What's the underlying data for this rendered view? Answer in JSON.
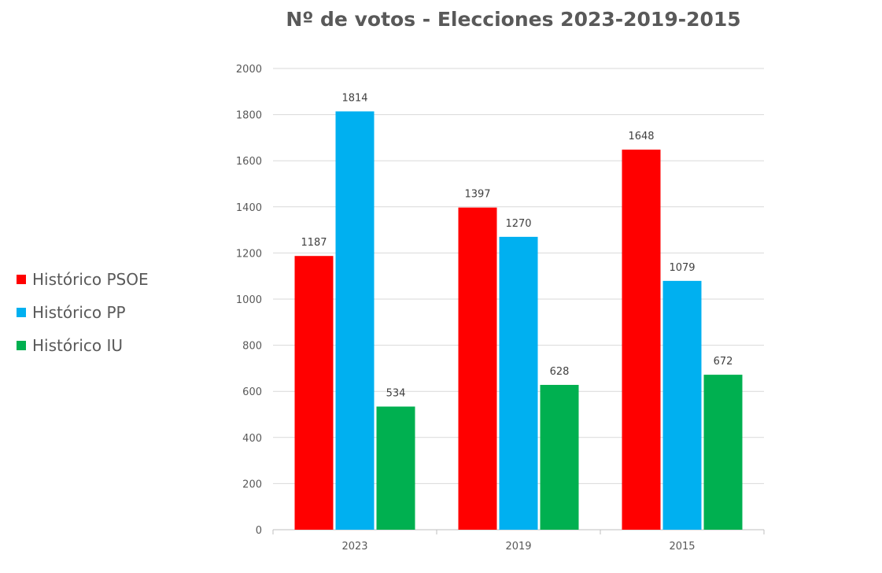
{
  "chart_data": {
    "type": "bar",
    "title": "Nº de votos - Elecciones 2023-2019-2015",
    "xlabel": "",
    "ylabel": "",
    "categories": [
      "2023",
      "2019",
      "2015"
    ],
    "series": [
      {
        "name": "Histórico PSOE",
        "color": "#ff0000",
        "values": [
          1187,
          1397,
          1648
        ]
      },
      {
        "name": "Histórico PP",
        "color": "#00b0f0",
        "values": [
          1814,
          1270,
          1079
        ]
      },
      {
        "name": "Histórico IU",
        "color": "#00b050",
        "values": [
          534,
          628,
          672
        ]
      }
    ],
    "ylim": [
      0,
      2000
    ],
    "yticks": [
      "0",
      "200",
      "400",
      "600",
      "800",
      "1000",
      "1200",
      "1400",
      "1600",
      "1800",
      "2000"
    ],
    "grid": true,
    "legend_position": "left"
  }
}
